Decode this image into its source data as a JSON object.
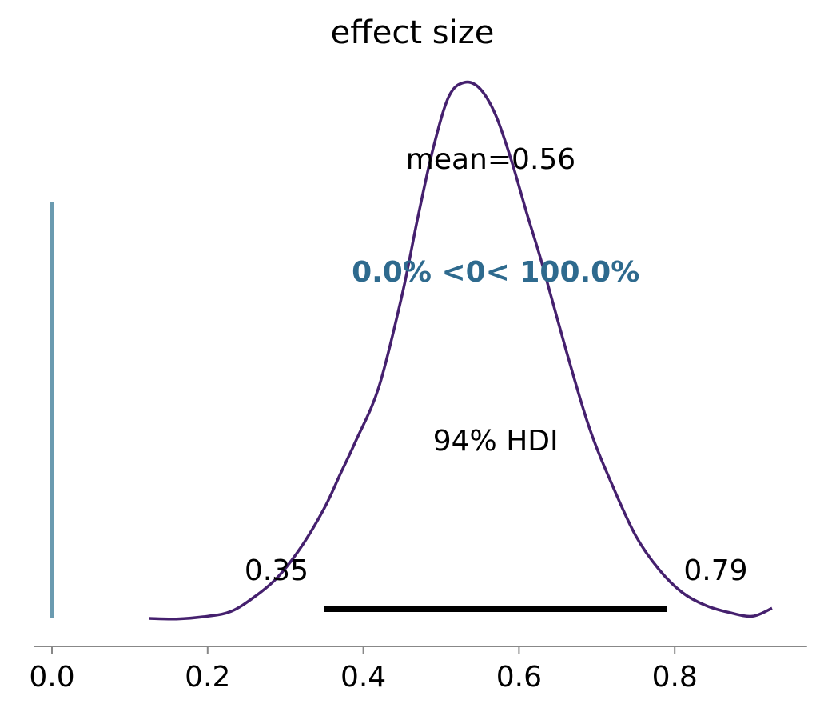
{
  "chart_data": {
    "type": "area",
    "title": "effect size",
    "xlabel": "",
    "ylabel": "",
    "xlim": [
      -0.023,
      0.97
    ],
    "ylim": [
      0,
      1.0
    ],
    "x_ticks": [
      0.0,
      0.2,
      0.4,
      0.6,
      0.8
    ],
    "x_tick_labels": [
      "0.0",
      "0.2",
      "0.4",
      "0.6",
      "0.8"
    ],
    "grid": false,
    "series": [
      {
        "x": [
          0.125,
          0.16,
          0.2,
          0.23,
          0.26,
          0.29,
          0.32,
          0.35,
          0.37,
          0.39,
          0.42,
          0.45,
          0.47,
          0.49,
          0.51,
          0.53,
          0.55,
          0.57,
          0.59,
          0.61,
          0.63,
          0.66,
          0.69,
          0.72,
          0.75,
          0.78,
          0.81,
          0.84,
          0.87,
          0.9,
          0.925
        ],
        "y": [
          0.0,
          -0.001,
          0.004,
          0.013,
          0.04,
          0.077,
          0.133,
          0.206,
          0.268,
          0.33,
          0.432,
          0.605,
          0.748,
          0.879,
          0.974,
          1.0,
          0.988,
          0.939,
          0.855,
          0.756,
          0.66,
          0.503,
          0.357,
          0.248,
          0.154,
          0.091,
          0.048,
          0.024,
          0.011,
          0.004,
          0.019
        ]
      }
    ],
    "reference": {
      "value": 0,
      "color": "#6b9bb0",
      "text": "0.0% <0< 100.0%",
      "text_color": "#2e6a8e"
    },
    "mean_label": "mean=0.56",
    "hdi": {
      "low": 0.35,
      "high": 0.79,
      "label": "94% HDI",
      "low_label": "0.35",
      "high_label": "0.79"
    },
    "curve_color": "#45206e",
    "axis_color": "#888888"
  }
}
